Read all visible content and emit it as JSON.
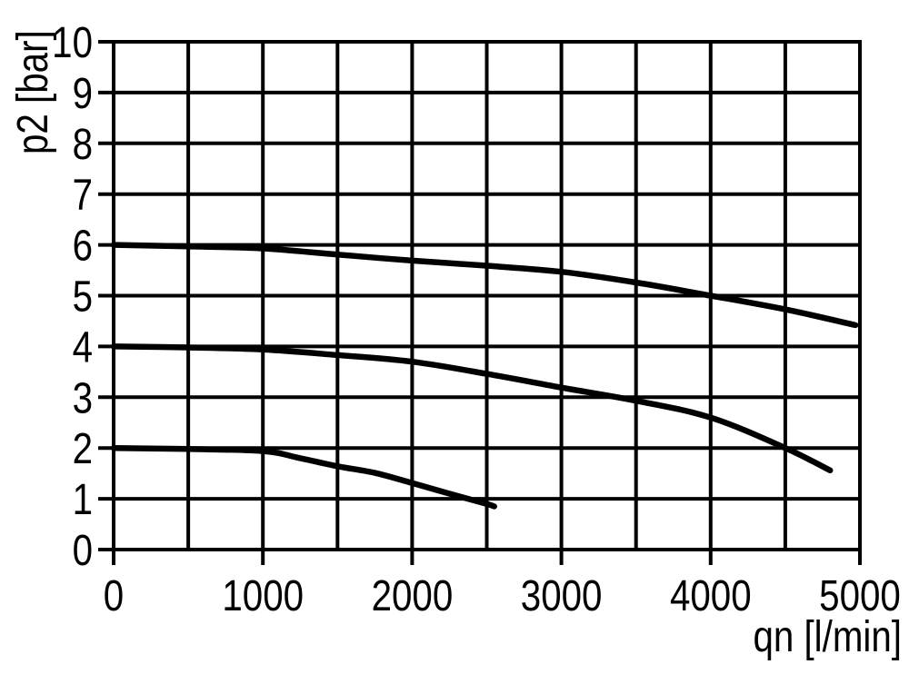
{
  "chart_data": {
    "type": "line",
    "title": "",
    "xlabel": "qn [l/min]",
    "ylabel": "p2 [bar]",
    "xlim": [
      0,
      5000
    ],
    "ylim": [
      0,
      10
    ],
    "x_major_ticks": [
      0,
      1000,
      2000,
      3000,
      4000,
      5000
    ],
    "x_grid_step": 500,
    "y_major_ticks": [
      0,
      1,
      2,
      3,
      4,
      5,
      6,
      7,
      8,
      9,
      10
    ],
    "y_grid_step": 1,
    "grid": true,
    "legend": false,
    "background_color": "#ffffff",
    "axis_color": "#000000",
    "curve_color": "#000000",
    "series": [
      {
        "name": "curve-from-6-bar",
        "points": [
          [
            0,
            6.0
          ],
          [
            500,
            5.97
          ],
          [
            1000,
            5.93
          ],
          [
            1500,
            5.81
          ],
          [
            2000,
            5.69
          ],
          [
            2500,
            5.59
          ],
          [
            3000,
            5.47
          ],
          [
            3500,
            5.26
          ],
          [
            4000,
            5.0
          ],
          [
            4500,
            4.73
          ],
          [
            4970,
            4.42
          ]
        ]
      },
      {
        "name": "curve-from-4-bar",
        "points": [
          [
            0,
            4.0
          ],
          [
            500,
            3.98
          ],
          [
            1000,
            3.94
          ],
          [
            1500,
            3.83
          ],
          [
            2000,
            3.7
          ],
          [
            2500,
            3.46
          ],
          [
            3000,
            3.19
          ],
          [
            3500,
            2.93
          ],
          [
            4000,
            2.6
          ],
          [
            4500,
            2.0
          ],
          [
            4800,
            1.56
          ]
        ]
      },
      {
        "name": "curve-from-2-bar",
        "points": [
          [
            0,
            2.0
          ],
          [
            500,
            1.98
          ],
          [
            1000,
            1.94
          ],
          [
            1250,
            1.8
          ],
          [
            1500,
            1.64
          ],
          [
            1750,
            1.51
          ],
          [
            2000,
            1.31
          ],
          [
            2250,
            1.1
          ],
          [
            2500,
            0.9
          ],
          [
            2550,
            0.85
          ]
        ]
      }
    ]
  }
}
